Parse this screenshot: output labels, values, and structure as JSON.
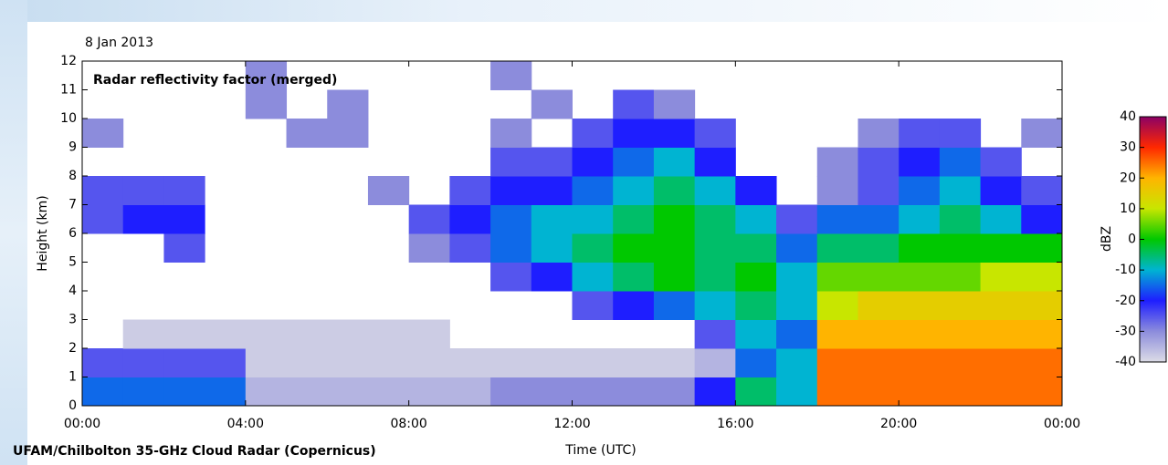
{
  "chart_data": {
    "type": "heatmap",
    "date": "8 Jan 2013",
    "title": "Radar reflectivity factor (merged)",
    "x_label": "Time (UTC)",
    "y_label": "Height (km)",
    "source": "UFAM/Chilbolton 35-GHz Cloud Radar (Copernicus)",
    "xlim": [
      0,
      24
    ],
    "xticks": [
      {
        "value": 0,
        "label": "00:00"
      },
      {
        "value": 4,
        "label": "04:00"
      },
      {
        "value": 8,
        "label": "08:00"
      },
      {
        "value": 12,
        "label": "12:00"
      },
      {
        "value": 16,
        "label": "16:00"
      },
      {
        "value": 20,
        "label": "20:00"
      },
      {
        "value": 24,
        "label": "00:00"
      }
    ],
    "ylim": [
      0,
      12
    ],
    "yticks": [
      0,
      1,
      2,
      3,
      4,
      5,
      6,
      7,
      8,
      9,
      10,
      11,
      12
    ],
    "time_bins": [
      0,
      1,
      2,
      3,
      4,
      5,
      6,
      7,
      8,
      9,
      10,
      11,
      12,
      13,
      14,
      15,
      16,
      17,
      18,
      19,
      20,
      21,
      22,
      23,
      24
    ],
    "height_bins": [
      0,
      1,
      2,
      3,
      4,
      5,
      6,
      7,
      8,
      9,
      10,
      11,
      12
    ],
    "z": [
      [
        -15,
        -15,
        -15,
        -15,
        -35,
        -35,
        -35,
        -35,
        -35,
        -35,
        -30,
        -30,
        -30,
        -30,
        -30,
        -20,
        -5,
        -10,
        25,
        25,
        25,
        25,
        25,
        25
      ],
      [
        -25,
        -25,
        -25,
        -25,
        -38,
        -38,
        -38,
        -38,
        -38,
        -38,
        -38,
        -38,
        -38,
        -38,
        -38,
        -35,
        -15,
        -10,
        25,
        25,
        25,
        25,
        25,
        25
      ],
      [
        null,
        -38,
        -38,
        -38,
        -38,
        -38,
        -38,
        -38,
        -38,
        null,
        null,
        null,
        null,
        null,
        null,
        -25,
        -10,
        -15,
        20,
        20,
        20,
        20,
        20,
        20
      ],
      [
        null,
        null,
        null,
        null,
        null,
        null,
        null,
        null,
        null,
        null,
        null,
        null,
        -25,
        -20,
        -15,
        -10,
        -5,
        -10,
        10,
        15,
        15,
        15,
        15,
        15
      ],
      [
        null,
        null,
        null,
        null,
        null,
        null,
        null,
        null,
        null,
        null,
        -25,
        -20,
        -10,
        -5,
        0,
        -5,
        0,
        -10,
        5,
        5,
        5,
        5,
        10,
        10
      ],
      [
        null,
        null,
        -25,
        null,
        null,
        null,
        null,
        null,
        -30,
        -25,
        -15,
        -10,
        -5,
        0,
        0,
        -5,
        -5,
        -15,
        -5,
        -5,
        0,
        0,
        0,
        0
      ],
      [
        -25,
        -20,
        -20,
        null,
        null,
        null,
        null,
        null,
        -25,
        -20,
        -15,
        -10,
        -10,
        -5,
        0,
        -5,
        -10,
        -25,
        -15,
        -15,
        -10,
        -5,
        -10,
        -20
      ],
      [
        -25,
        -25,
        -25,
        null,
        null,
        null,
        null,
        -30,
        null,
        -25,
        -20,
        -20,
        -15,
        -10,
        -5,
        -10,
        -20,
        null,
        -30,
        -25,
        -15,
        -10,
        -20,
        -25
      ],
      [
        null,
        null,
        null,
        null,
        null,
        null,
        null,
        null,
        null,
        null,
        -25,
        -25,
        -20,
        -15,
        -10,
        -20,
        null,
        null,
        -30,
        -25,
        -20,
        -15,
        -25,
        null
      ],
      [
        -30,
        null,
        null,
        null,
        null,
        -30,
        -30,
        null,
        null,
        null,
        -30,
        null,
        -25,
        -20,
        -20,
        -25,
        null,
        null,
        null,
        -30,
        -25,
        -25,
        null,
        -30
      ],
      [
        null,
        null,
        null,
        null,
        -30,
        null,
        -30,
        null,
        null,
        null,
        null,
        -30,
        null,
        -25,
        -30,
        null,
        null,
        null,
        null,
        null,
        null,
        null,
        null,
        null
      ],
      [
        null,
        null,
        null,
        null,
        -30,
        null,
        null,
        null,
        null,
        null,
        -30,
        null,
        null,
        null,
        null,
        null,
        null,
        null,
        null,
        null,
        null,
        null,
        null,
        null
      ]
    ],
    "colorbar_label": "dBZ",
    "zlim": [
      -40,
      40
    ],
    "zticks": [
      40,
      30,
      20,
      10,
      0,
      -10,
      -20,
      -30,
      -40
    ],
    "colors": [
      "#dcdce6",
      "#8c8cdc",
      "#1e1eff",
      "#00b4d2",
      "#00c800",
      "#c8e600",
      "#ffb400",
      "#ff2800",
      "#8c0064"
    ]
  }
}
